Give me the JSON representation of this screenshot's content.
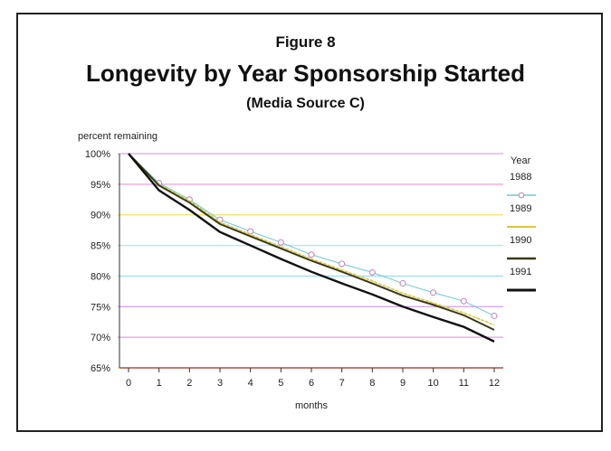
{
  "chart_data": {
    "type": "line",
    "figure_label": "Figure 8",
    "title": "Longevity by Year Sponsorship Started",
    "subtitle": "(Media Source C)",
    "xlabel": "months",
    "ylabel": "percent remaining",
    "x": [
      0,
      1,
      2,
      3,
      4,
      5,
      6,
      7,
      8,
      9,
      10,
      11,
      12
    ],
    "xlim": [
      0,
      12
    ],
    "ylim": [
      65,
      100
    ],
    "yticks": [
      100,
      95,
      90,
      85,
      80,
      75,
      70,
      65
    ],
    "ytick_labels": [
      "100%",
      "95%",
      "90%",
      "85%",
      "80%",
      "75%",
      "70%",
      "65%"
    ],
    "grid": true,
    "legend_title": "Year",
    "legend_placement": "right",
    "series": [
      {
        "name": "1988",
        "color": "#6cc8d8",
        "marker": "circle",
        "values": [
          100,
          95.2,
          92.5,
          89.2,
          87.3,
          85.5,
          83.5,
          82.0,
          80.6,
          78.8,
          77.3,
          75.9,
          73.5
        ]
      },
      {
        "name": "1989",
        "color": "#d8c840",
        "marker": "none",
        "values": [
          100,
          95.0,
          92.3,
          88.8,
          86.8,
          84.8,
          82.8,
          81.0,
          79.2,
          77.2,
          75.6,
          74.0,
          72.0
        ]
      },
      {
        "name": "1990",
        "color": "#3a3a1a",
        "marker": "none",
        "values": [
          100,
          94.8,
          92.0,
          88.5,
          86.5,
          84.5,
          82.5,
          80.7,
          78.8,
          76.8,
          75.3,
          73.6,
          71.2
        ]
      },
      {
        "name": "1991",
        "color": "#111111",
        "marker": "none",
        "values": [
          100,
          94.0,
          90.8,
          87.2,
          85.0,
          82.8,
          80.7,
          78.8,
          77.0,
          75.0,
          73.3,
          71.7,
          69.3
        ]
      }
    ]
  }
}
